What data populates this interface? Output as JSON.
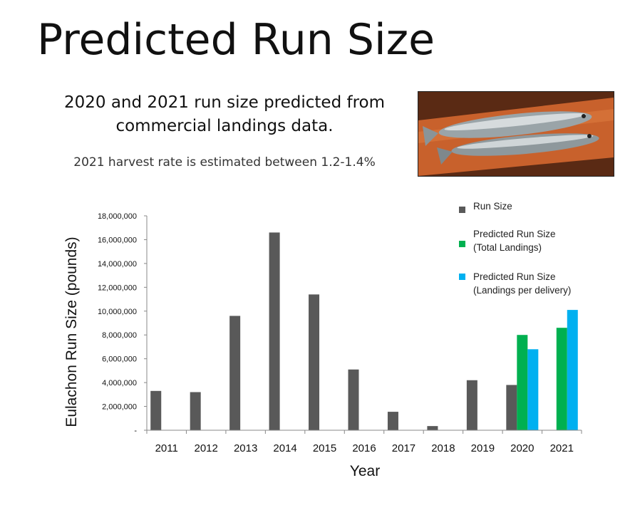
{
  "slide": {
    "title": "Predicted Run Size",
    "subtitle": "2020 and 2021 run size predicted from commercial landings data.",
    "note": "2021 harvest rate is estimated between 1.2-1.4%",
    "photo_icon": "eulachon-fish-photo"
  },
  "chart_data": {
    "type": "bar",
    "categories": [
      "2011",
      "2012",
      "2013",
      "2014",
      "2015",
      "2016",
      "2017",
      "2018",
      "2019",
      "2020",
      "2021"
    ],
    "series": [
      {
        "name": "Run Size",
        "color": "#595959",
        "values": [
          3300000,
          3200000,
          9600000,
          16600000,
          11400000,
          5100000,
          1550000,
          350000,
          4200000,
          3800000,
          null
        ]
      },
      {
        "name": "Predicted Run Size\n(Total Landings)",
        "color": "#00b050",
        "values": [
          null,
          null,
          null,
          null,
          null,
          null,
          null,
          null,
          null,
          8000000,
          8600000
        ]
      },
      {
        "name": "Predicted Run Size\n(Landings per delivery)",
        "color": "#00b0f0",
        "values": [
          null,
          null,
          null,
          null,
          null,
          null,
          null,
          null,
          null,
          6800000,
          10100000
        ]
      }
    ],
    "xlabel": "Year",
    "ylabel": "Eulachon Run Size (pounds)",
    "ylim": [
      0,
      18000000
    ],
    "yticks": [
      0,
      2000000,
      4000000,
      6000000,
      8000000,
      10000000,
      12000000,
      14000000,
      16000000,
      18000000
    ],
    "ytick_labels": [
      "-",
      "2,000,000",
      "4,000,000",
      "6,000,000",
      "8,000,000",
      "10,000,000",
      "12,000,000",
      "14,000,000",
      "16,000,000",
      "18,000,000"
    ],
    "grid": false,
    "legend": "top-right"
  }
}
